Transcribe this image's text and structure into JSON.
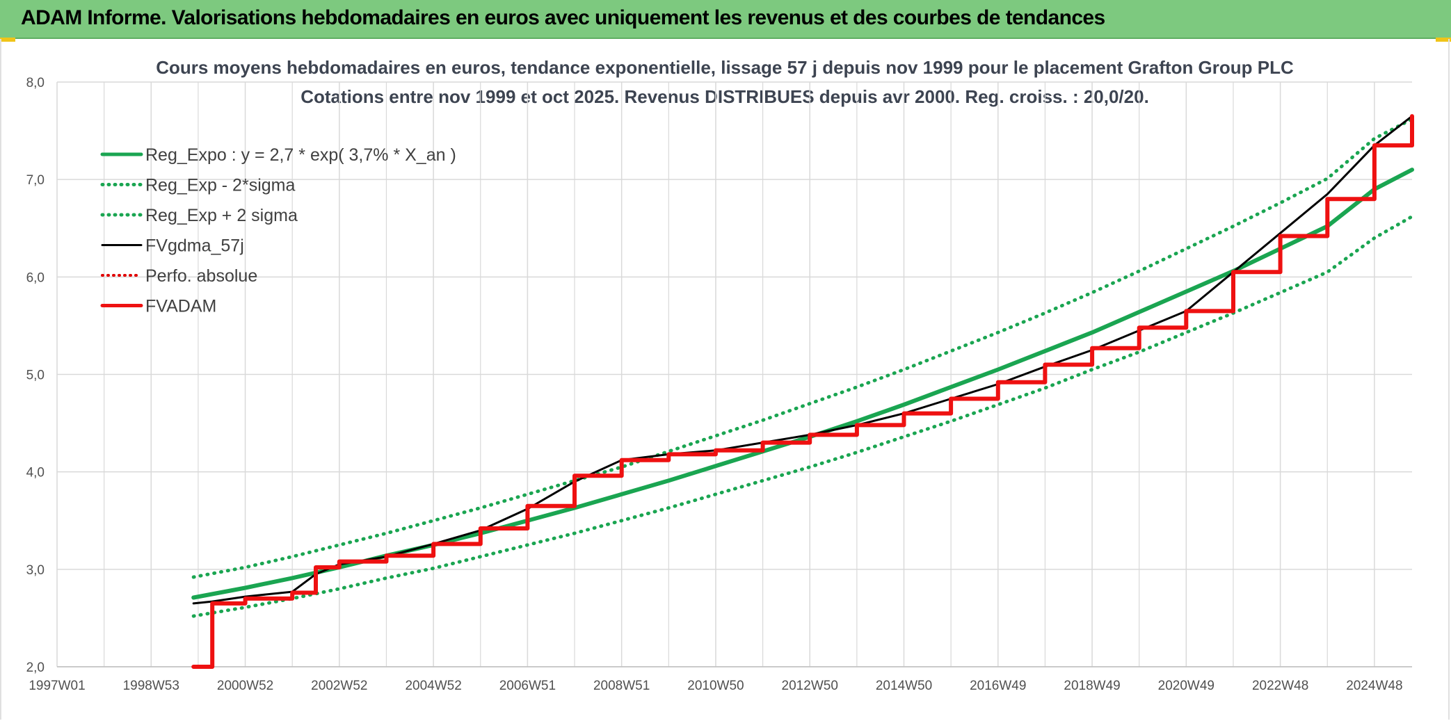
{
  "header": {
    "title": "ADAM Informe. Valorisations hebdomadaires en euros avec uniquement les revenus et des courbes de tendances"
  },
  "colors": {
    "banner": "#7dc97f",
    "trend": "#1aa551",
    "band": "#1aa551",
    "fvgdma": "#000000",
    "perfo": "#e00000",
    "fvadam": "#ee1111",
    "grid": "#d9d9d9"
  },
  "chart_data": {
    "type": "line",
    "title": "Cours moyens hebdomadaires en euros, tendance exponentielle, lissage 57 j depuis nov 1999 pour le placement Grafton Group PLC",
    "subtitle": "Cotations entre nov 1999 et oct 2025. Revenus DISTRIBUES depuis avr 2000. Reg. croiss. : 20,0/20.",
    "xlabel": "",
    "ylabel": "",
    "x_range": [
      1997.0,
      2025.8
    ],
    "ylim": [
      2.0,
      8.0
    ],
    "y_ticks": [
      2.0,
      3.0,
      4.0,
      5.0,
      6.0,
      7.0,
      8.0
    ],
    "y_tick_labels": [
      "2,0",
      "3,0",
      "4,0",
      "5,0",
      "6,0",
      "7,0",
      "8,0"
    ],
    "x_ticks": [
      {
        "label": "1997W01",
        "x": 1997.0
      },
      {
        "label": "1998W53",
        "x": 1999.0
      },
      {
        "label": "2000W52",
        "x": 2001.0
      },
      {
        "label": "2002W52",
        "x": 2003.0
      },
      {
        "label": "2004W52",
        "x": 2005.0
      },
      {
        "label": "2006W51",
        "x": 2007.0
      },
      {
        "label": "2008W51",
        "x": 2009.0
      },
      {
        "label": "2010W50",
        "x": 2011.0
      },
      {
        "label": "2012W50",
        "x": 2013.0
      },
      {
        "label": "2014W50",
        "x": 2015.0
      },
      {
        "label": "2016W49",
        "x": 2017.0
      },
      {
        "label": "2018W49",
        "x": 2019.0
      },
      {
        "label": "2020W49",
        "x": 2021.0
      },
      {
        "label": "2022W48",
        "x": 2023.0
      },
      {
        "label": "2024W48",
        "x": 2025.0
      }
    ],
    "grid": true,
    "legend_position": "top-left",
    "series": [
      {
        "name": "Reg_Expo : y = 2,7 * exp( 3,7% *  X_an )",
        "style": "solid-thick",
        "x": [
          1999.9,
          2001.0,
          2002.0,
          2003.0,
          2004.0,
          2005.0,
          2006.0,
          2007.0,
          2008.0,
          2009.0,
          2010.0,
          2011.0,
          2012.0,
          2013.0,
          2014.0,
          2015.0,
          2016.0,
          2017.0,
          2018.0,
          2019.0,
          2020.0,
          2021.0,
          2022.0,
          2023.0,
          2024.0,
          2025.0,
          2025.8
        ],
        "y": [
          2.71,
          2.81,
          2.91,
          3.02,
          3.14,
          3.25,
          3.37,
          3.5,
          3.63,
          3.77,
          3.91,
          4.06,
          4.21,
          4.36,
          4.52,
          4.69,
          4.87,
          5.05,
          5.24,
          5.43,
          5.64,
          5.85,
          6.06,
          6.29,
          6.52,
          6.9,
          7.1
        ]
      },
      {
        "name": "Reg_Exp - 2*sigma",
        "style": "dotted",
        "x": [
          1999.9,
          2001.0,
          2002.0,
          2003.0,
          2004.0,
          2005.0,
          2006.0,
          2007.0,
          2008.0,
          2009.0,
          2010.0,
          2011.0,
          2012.0,
          2013.0,
          2014.0,
          2015.0,
          2016.0,
          2017.0,
          2018.0,
          2019.0,
          2020.0,
          2021.0,
          2022.0,
          2023.0,
          2024.0,
          2025.0,
          2025.8
        ],
        "y": [
          2.52,
          2.61,
          2.7,
          2.8,
          2.91,
          3.01,
          3.13,
          3.25,
          3.37,
          3.5,
          3.63,
          3.77,
          3.91,
          4.05,
          4.2,
          4.36,
          4.52,
          4.69,
          4.86,
          5.05,
          5.23,
          5.43,
          5.63,
          5.84,
          6.05,
          6.4,
          6.62
        ]
      },
      {
        "name": "Reg_Exp + 2 sigma",
        "style": "dotted",
        "x": [
          1999.9,
          2001.0,
          2002.0,
          2003.0,
          2004.0,
          2005.0,
          2006.0,
          2007.0,
          2008.0,
          2009.0,
          2010.0,
          2011.0,
          2012.0,
          2013.0,
          2014.0,
          2015.0,
          2016.0,
          2017.0,
          2018.0,
          2019.0,
          2020.0,
          2021.0,
          2022.0,
          2023.0,
          2024.0,
          2025.0,
          2025.8
        ],
        "y": [
          2.92,
          3.02,
          3.13,
          3.25,
          3.37,
          3.5,
          3.63,
          3.77,
          3.91,
          4.05,
          4.21,
          4.37,
          4.53,
          4.7,
          4.87,
          5.05,
          5.24,
          5.43,
          5.63,
          5.84,
          6.06,
          6.29,
          6.52,
          6.76,
          7.01,
          7.42,
          7.62
        ]
      },
      {
        "name": "FVgdma_57j",
        "style": "solid",
        "x": [
          1999.9,
          2000.3,
          2001.0,
          2002.0,
          2002.5,
          2003.0,
          2004.0,
          2005.0,
          2006.0,
          2007.0,
          2008.0,
          2009.0,
          2010.0,
          2011.0,
          2012.0,
          2013.0,
          2014.0,
          2015.0,
          2016.0,
          2017.0,
          2018.0,
          2019.0,
          2020.0,
          2021.0,
          2022.0,
          2023.0,
          2024.0,
          2025.0,
          2025.8
        ],
        "y": [
          2.65,
          2.67,
          2.72,
          2.77,
          2.95,
          3.05,
          3.13,
          3.26,
          3.4,
          3.62,
          3.9,
          4.12,
          4.18,
          4.22,
          4.3,
          4.38,
          4.48,
          4.6,
          4.75,
          4.9,
          5.08,
          5.25,
          5.45,
          5.65,
          6.05,
          6.45,
          6.85,
          7.35,
          7.65
        ]
      },
      {
        "name": "Perfo. absolue",
        "style": "dotted-red",
        "x": [],
        "y": []
      },
      {
        "name": "FVADAM",
        "style": "step-thick",
        "x": [
          1999.9,
          2000.3,
          2001.0,
          2002.0,
          2002.5,
          2003.0,
          2004.0,
          2005.0,
          2006.0,
          2007.0,
          2008.0,
          2009.0,
          2010.0,
          2011.0,
          2012.0,
          2013.0,
          2014.0,
          2015.0,
          2016.0,
          2017.0,
          2018.0,
          2019.0,
          2020.0,
          2021.0,
          2022.0,
          2023.0,
          2024.0,
          2025.0,
          2025.8
        ],
        "y": [
          2.0,
          2.65,
          2.7,
          2.76,
          3.02,
          3.08,
          3.14,
          3.26,
          3.42,
          3.65,
          3.96,
          4.12,
          4.18,
          4.22,
          4.3,
          4.38,
          4.48,
          4.6,
          4.75,
          4.92,
          5.1,
          5.27,
          5.48,
          5.65,
          6.05,
          6.42,
          6.8,
          7.35,
          7.65
        ]
      }
    ]
  }
}
